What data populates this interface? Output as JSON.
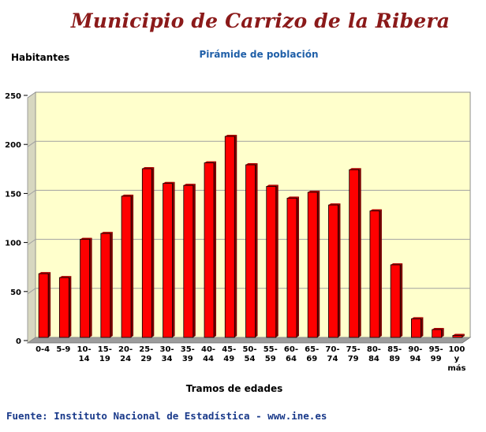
{
  "header": {
    "title": "Municipio de Carrizo de la Ribera"
  },
  "footer": {
    "source": "Fuente: Instituto Nacional de Estadística - www.ine.es"
  },
  "colors": {
    "bar": "#ff0000",
    "bar_side": "#7a0000",
    "plot_background": "#ffffcc",
    "title": "#8b1a1a",
    "subtitle": "#1f5fa8",
    "source": "#1a3a8a"
  },
  "chart_data": {
    "type": "bar",
    "title": "Pirámide de población",
    "xlabel": "Tramos de edades",
    "ylabel": "Habitantes",
    "ylim": [
      0,
      250
    ],
    "yticks": [
      0,
      50,
      100,
      150,
      200,
      250
    ],
    "grid": true,
    "legend": "none",
    "categories": [
      [
        "0-4"
      ],
      [
        "5-9"
      ],
      [
        "10-",
        "14"
      ],
      [
        "15-",
        "19"
      ],
      [
        "20-",
        "24"
      ],
      [
        "25-",
        "29"
      ],
      [
        "30-",
        "34"
      ],
      [
        "35-",
        "39"
      ],
      [
        "40-",
        "44"
      ],
      [
        "45-",
        "49"
      ],
      [
        "50-",
        "54"
      ],
      [
        "55-",
        "59"
      ],
      [
        "60-",
        "64"
      ],
      [
        "65-",
        "69"
      ],
      [
        "70-",
        "74"
      ],
      [
        "75-",
        "79"
      ],
      [
        "80-",
        "84"
      ],
      [
        "85-",
        "89"
      ],
      [
        "90-",
        "94"
      ],
      [
        "95-",
        "99"
      ],
      [
        "100",
        "y",
        "más"
      ]
    ],
    "values": [
      65,
      61,
      100,
      106,
      144,
      172,
      157,
      155,
      178,
      205,
      176,
      154,
      142,
      148,
      135,
      171,
      129,
      74,
      19,
      8,
      2
    ]
  }
}
